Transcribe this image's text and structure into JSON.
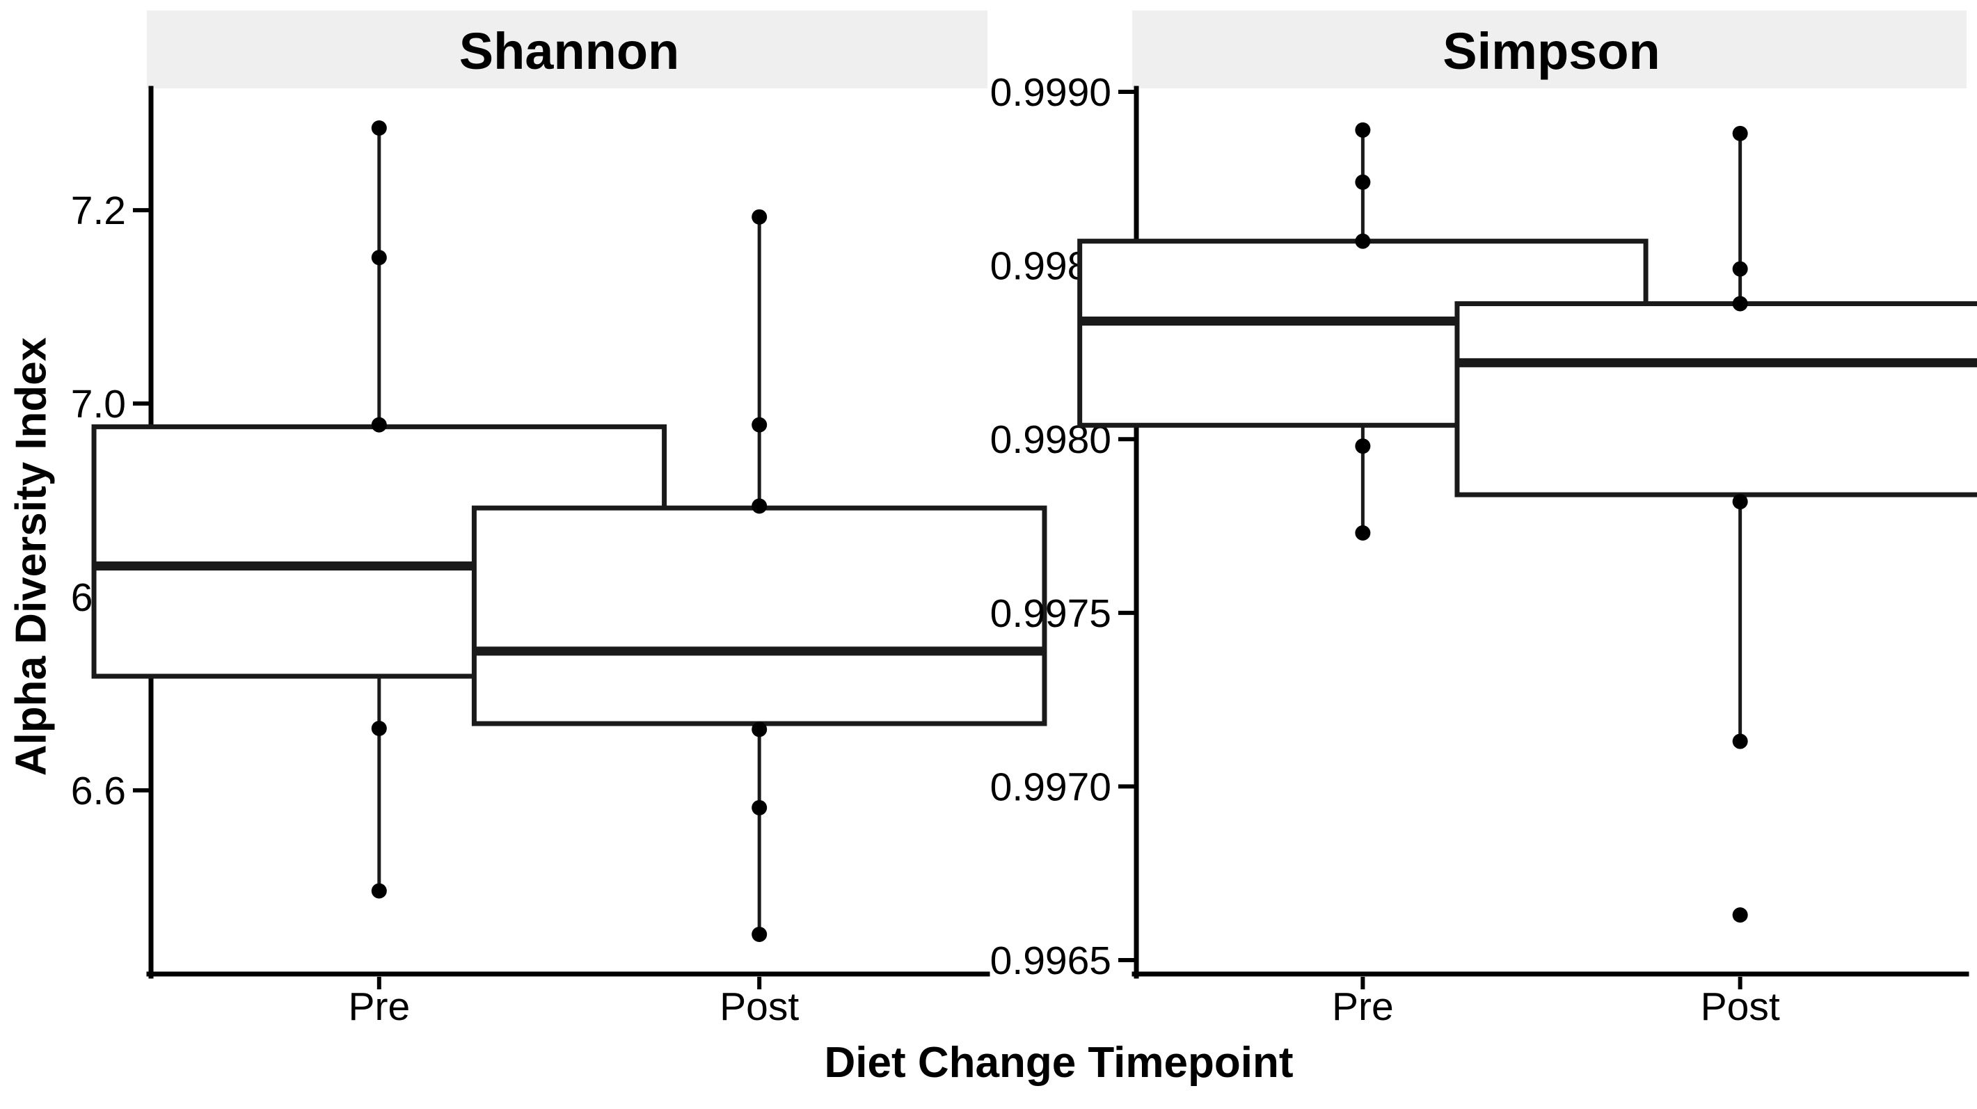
{
  "figure": {
    "x_title": "Diet Change Timepoint",
    "y_title": "Alpha Diversity Index",
    "background": "#FFFFFF",
    "strip_bg": "#EFEFEF",
    "axis_color": "#000000",
    "box_border_color": "#1A1A1A",
    "box_fill": "#FFFFFF",
    "point_color": "#000000"
  },
  "chart_data": [
    {
      "type": "boxplot",
      "title": "Shannon",
      "xlabel": "Diet Change Timepoint",
      "ylabel": "Alpha Diversity Index",
      "categories": [
        "Pre",
        "Post"
      ],
      "ylim": [
        6.41,
        7.326
      ],
      "yticks": [
        6.6,
        6.8,
        7.0,
        7.2
      ],
      "ytick_labels": [
        "6.6",
        "6.8",
        "7.0",
        "7.2"
      ],
      "grid": false,
      "legend": "none",
      "series": [
        {
          "category": "Pre",
          "q1": 6.718,
          "median": 6.832,
          "q3": 6.976,
          "whisker_low": 6.496,
          "whisker_high": 7.285,
          "points": [
            7.285,
            7.151,
            6.978,
            6.664,
            6.496
          ],
          "outliers": []
        },
        {
          "category": "Post",
          "q1": 6.669,
          "median": 6.744,
          "q3": 6.892,
          "whisker_low": 6.451,
          "whisker_high": 7.193,
          "points": [
            7.193,
            6.978,
            6.894,
            6.663,
            6.582,
            6.451
          ],
          "outliers": []
        }
      ]
    },
    {
      "type": "boxplot",
      "title": "Simpson",
      "xlabel": "Diet Change Timepoint",
      "ylabel": "Alpha Diversity Index",
      "categories": [
        "Pre",
        "Post"
      ],
      "ylim": [
        0.99646,
        0.99901
      ],
      "yticks": [
        0.9965,
        0.997,
        0.9975,
        0.998,
        0.9985,
        0.999
      ],
      "ytick_labels": [
        "0.9965",
        "0.9970",
        "0.9975",
        "0.9980",
        "0.9985",
        "0.9990"
      ],
      "grid": false,
      "legend": "none",
      "series": [
        {
          "category": "Pre",
          "q1": 0.99804,
          "median": 0.99834,
          "q3": 0.99857,
          "whisker_low": 0.99773,
          "whisker_high": 0.99889,
          "points": [
            0.99889,
            0.99874,
            0.99857,
            0.99798,
            0.99773
          ],
          "outliers": []
        },
        {
          "category": "Post",
          "q1": 0.99784,
          "median": 0.99822,
          "q3": 0.99839,
          "whisker_low": 0.99713,
          "whisker_high": 0.99888,
          "points": [
            0.99888,
            0.99849,
            0.99839,
            0.99782,
            0.99713
          ],
          "outliers": [
            0.99663
          ]
        }
      ]
    }
  ]
}
